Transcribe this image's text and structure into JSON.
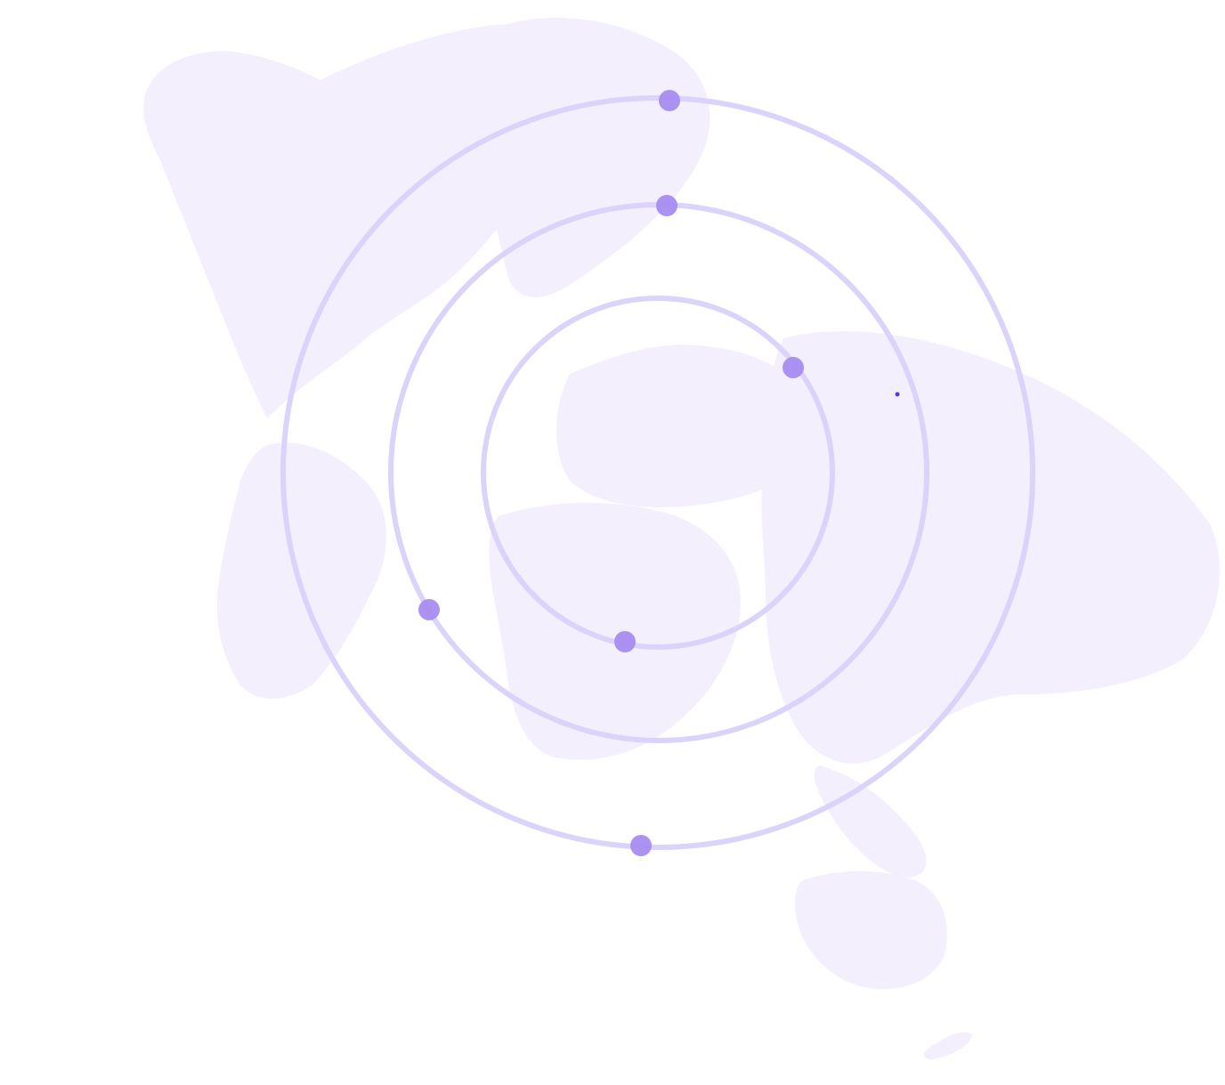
{
  "colors": {
    "background": "#ffffff",
    "land": "#f3effd",
    "orbit": "#dcd3fa",
    "node": "#a58af0",
    "marker": "#4f3ce8"
  },
  "orbits": [
    {
      "name": "inner-orbit",
      "node_count": 2
    },
    {
      "name": "middle-orbit",
      "node_count": 2
    },
    {
      "name": "outer-orbit",
      "node_count": 2
    }
  ],
  "icons": {
    "map": "world-map-icon",
    "marker": "location-dot-icon"
  }
}
